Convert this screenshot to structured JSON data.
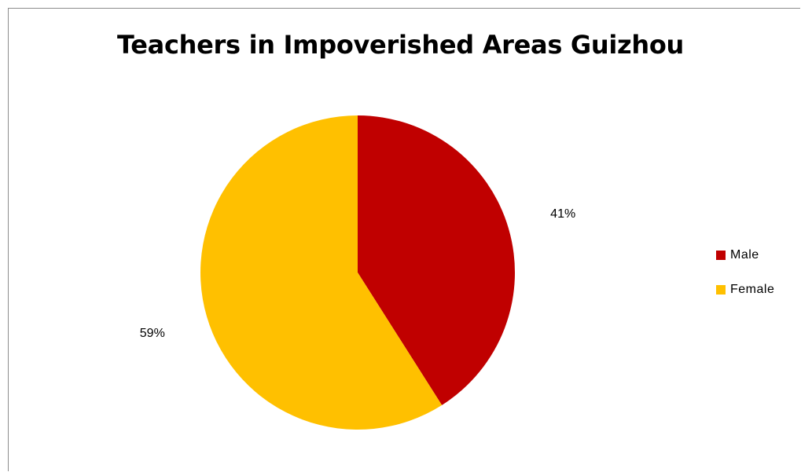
{
  "chart_data": {
    "type": "pie",
    "title": "Teachers in Impoverished Areas Guizhou",
    "categories": [
      "Male",
      "Female"
    ],
    "values": [
      41,
      59
    ],
    "labels": [
      "41%",
      "59%"
    ],
    "colors": [
      "#C00000",
      "#FFC000"
    ],
    "legend_position": "right"
  }
}
